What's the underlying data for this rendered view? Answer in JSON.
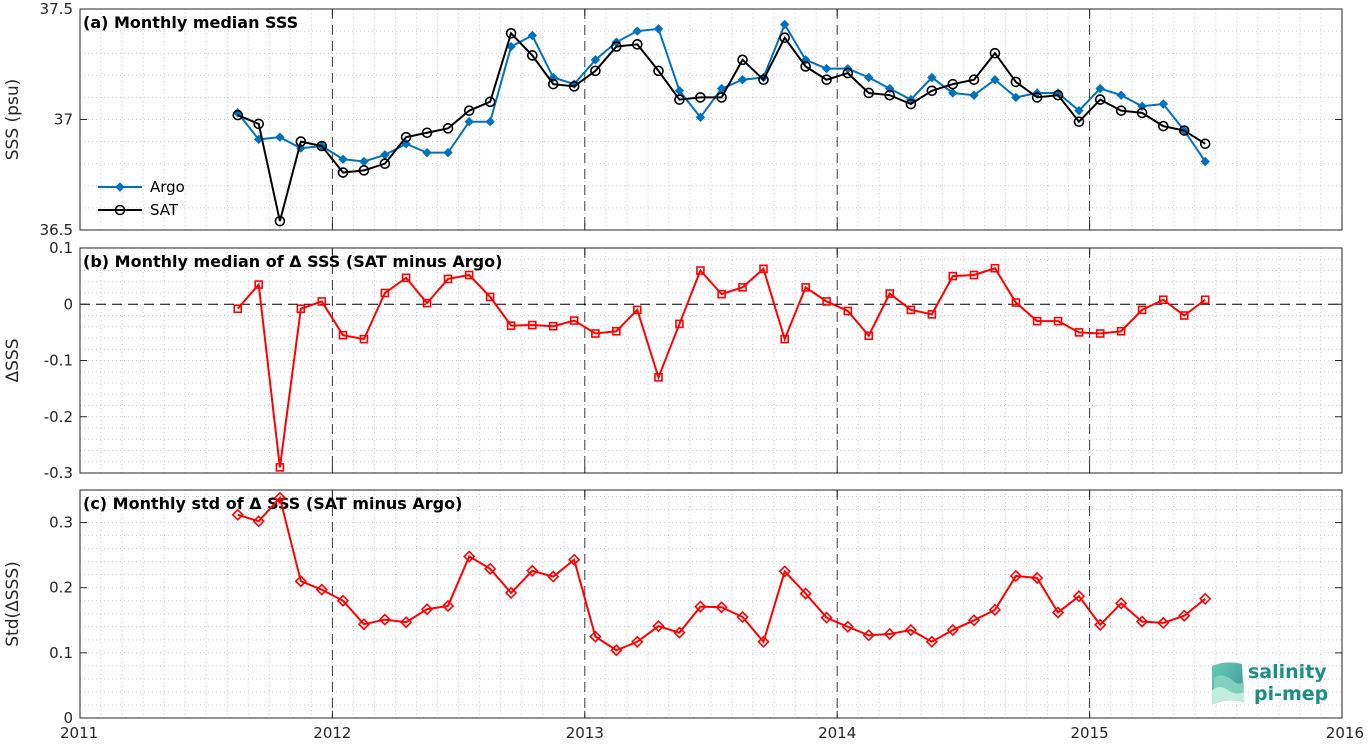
{
  "chart_data": [
    {
      "type": "line",
      "title": "(a) Monthly median SSS",
      "ylabel": "SSS (psu)",
      "xlim": [
        2011,
        2016
      ],
      "ylim": [
        36.5,
        37.5
      ],
      "xticks": [
        "2011",
        "2012",
        "2013",
        "2014",
        "2015",
        "2016"
      ],
      "yticks": [
        "36.5",
        "37",
        "37.5"
      ],
      "legend_position": "bottom-left",
      "x": [
        2011.625,
        2011.708,
        2011.792,
        2011.875,
        2011.958,
        2012.042,
        2012.125,
        2012.208,
        2012.292,
        2012.375,
        2012.458,
        2012.542,
        2012.625,
        2012.708,
        2012.792,
        2012.875,
        2012.958,
        2013.042,
        2013.125,
        2013.208,
        2013.292,
        2013.375,
        2013.458,
        2013.542,
        2013.625,
        2013.708,
        2013.792,
        2013.875,
        2013.958,
        2014.042,
        2014.125,
        2014.208,
        2014.292,
        2014.375,
        2014.458,
        2014.542,
        2014.625,
        2014.708,
        2014.792,
        2014.875,
        2014.958,
        2015.042,
        2015.125,
        2015.208,
        2015.292,
        2015.375,
        2015.458
      ],
      "series": [
        {
          "name": "Argo",
          "color": "#0072BD",
          "marker": "diamond",
          "values": [
            37.03,
            36.91,
            36.92,
            36.87,
            36.88,
            36.82,
            36.81,
            36.84,
            36.89,
            36.85,
            36.85,
            36.99,
            36.99,
            37.33,
            37.38,
            37.19,
            37.16,
            37.27,
            37.35,
            37.4,
            37.41,
            37.13,
            37.01,
            37.14,
            37.18,
            37.19,
            37.43,
            37.27,
            37.23,
            37.23,
            37.19,
            37.14,
            37.09,
            37.19,
            37.12,
            37.11,
            37.18,
            37.1,
            37.12,
            37.12,
            37.04,
            37.14,
            37.11,
            37.06,
            37.07,
            36.95,
            36.81
          ]
        },
        {
          "name": "SAT",
          "color": "#000000",
          "marker": "circle",
          "values": [
            37.02,
            36.98,
            36.54,
            36.9,
            36.88,
            36.76,
            36.77,
            36.8,
            36.92,
            36.94,
            36.96,
            37.04,
            37.08,
            37.39,
            37.29,
            37.16,
            37.15,
            37.22,
            37.33,
            37.34,
            37.22,
            37.09,
            37.1,
            37.1,
            37.27,
            37.18,
            37.37,
            37.24,
            37.18,
            37.21,
            37.12,
            37.11,
            37.07,
            37.13,
            37.16,
            37.18,
            37.3,
            37.17,
            37.1,
            37.11,
            36.99,
            37.09,
            37.04,
            37.03,
            36.97,
            36.95,
            36.89
          ]
        }
      ]
    },
    {
      "type": "line",
      "title": "(b) Monthly median of Δ SSS (SAT minus Argo)",
      "ylabel": "ΔSSS",
      "xlim": [
        2011,
        2016
      ],
      "ylim": [
        -0.3,
        0.1
      ],
      "xticks": [
        "2011",
        "2012",
        "2013",
        "2014",
        "2015",
        "2016"
      ],
      "yticks": [
        "0.1",
        "0",
        "-0.1",
        "-0.2",
        "-0.3"
      ],
      "reference_line": 0,
      "x": [
        2011.625,
        2011.708,
        2011.792,
        2011.875,
        2011.958,
        2012.042,
        2012.125,
        2012.208,
        2012.292,
        2012.375,
        2012.458,
        2012.542,
        2012.625,
        2012.708,
        2012.792,
        2012.875,
        2012.958,
        2013.042,
        2013.125,
        2013.208,
        2013.292,
        2013.375,
        2013.458,
        2013.542,
        2013.625,
        2013.708,
        2013.792,
        2013.875,
        2013.958,
        2014.042,
        2014.125,
        2014.208,
        2014.292,
        2014.375,
        2014.458,
        2014.542,
        2014.625,
        2014.708,
        2014.792,
        2014.875,
        2014.958,
        2015.042,
        2015.125,
        2015.208,
        2015.292,
        2015.375,
        2015.458
      ],
      "series": [
        {
          "color": "#FF0000",
          "marker": "square",
          "values": [
            -0.008,
            0.035,
            -0.29,
            -0.008,
            0.005,
            -0.055,
            -0.062,
            0.02,
            0.047,
            0.002,
            0.045,
            0.052,
            0.013,
            -0.038,
            -0.037,
            -0.039,
            -0.029,
            -0.052,
            -0.048,
            -0.01,
            -0.13,
            -0.035,
            0.06,
            0.018,
            0.03,
            0.063,
            -0.062,
            0.03,
            0.005,
            -0.012,
            -0.056,
            0.019,
            -0.01,
            -0.018,
            0.05,
            0.052,
            0.064,
            0.003,
            -0.03,
            -0.03,
            -0.05,
            -0.052,
            -0.048,
            -0.01,
            0.008,
            -0.02,
            0.008
          ]
        }
      ]
    },
    {
      "type": "line",
      "title": "(c) Monthly std of Δ SSS (SAT minus Argo)",
      "ylabel": "Std(ΔSSS)",
      "xlim": [
        2011,
        2016
      ],
      "ylim": [
        0,
        0.35
      ],
      "xticks": [
        "2011",
        "2012",
        "2013",
        "2014",
        "2015",
        "2016"
      ],
      "yticks": [
        "0.3",
        "0.2",
        "0.1",
        "0"
      ],
      "x": [
        2011.625,
        2011.708,
        2011.792,
        2011.875,
        2011.958,
        2012.042,
        2012.125,
        2012.208,
        2012.292,
        2012.375,
        2012.458,
        2012.542,
        2012.625,
        2012.708,
        2012.792,
        2012.875,
        2012.958,
        2013.042,
        2013.125,
        2013.208,
        2013.292,
        2013.375,
        2013.458,
        2013.542,
        2013.625,
        2013.708,
        2013.792,
        2013.875,
        2013.958,
        2014.042,
        2014.125,
        2014.208,
        2014.292,
        2014.375,
        2014.458,
        2014.542,
        2014.625,
        2014.708,
        2014.792,
        2014.875,
        2014.958,
        2015.042,
        2015.125,
        2015.208,
        2015.292,
        2015.375,
        2015.458
      ],
      "series": [
        {
          "color": "#FF0000",
          "marker": "diamond",
          "values": [
            0.312,
            0.302,
            0.338,
            0.21,
            0.197,
            0.18,
            0.144,
            0.151,
            0.147,
            0.167,
            0.172,
            0.248,
            0.229,
            0.192,
            0.226,
            0.217,
            0.243,
            0.125,
            0.104,
            0.117,
            0.141,
            0.131,
            0.171,
            0.17,
            0.155,
            0.117,
            0.225,
            0.191,
            0.154,
            0.14,
            0.127,
            0.129,
            0.135,
            0.117,
            0.135,
            0.15,
            0.166,
            0.218,
            0.215,
            0.162,
            0.187,
            0.143,
            0.176,
            0.148,
            0.146,
            0.157,
            0.183
          ]
        }
      ]
    }
  ],
  "logo": {
    "line1": "salinity",
    "line2": "pi-mep"
  },
  "colors": {
    "grid_minor": "#c8c8c8",
    "grid_major": "#000000",
    "axis": "#262626"
  }
}
